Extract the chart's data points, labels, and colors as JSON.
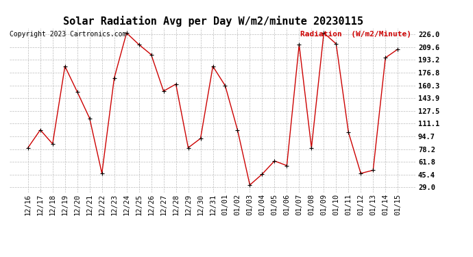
{
  "title": "Solar Radiation Avg per Day W/m2/minute 20230115",
  "copyright": "Copyright 2023 Cartronics.com",
  "legend_label": "Radiation  (W/m2/Minute)",
  "dates": [
    "12/16",
    "12/17",
    "12/18",
    "12/19",
    "12/20",
    "12/21",
    "12/22",
    "12/23",
    "12/24",
    "12/25",
    "12/26",
    "12/27",
    "12/28",
    "12/29",
    "12/30",
    "12/31",
    "01/01",
    "01/02",
    "01/03",
    "01/04",
    "01/05",
    "01/06",
    "01/07",
    "01/08",
    "01/09",
    "01/10",
    "01/11",
    "01/12",
    "01/13",
    "01/14",
    "01/15"
  ],
  "values": [
    80,
    103,
    85,
    185,
    152,
    118,
    47,
    170,
    228,
    213,
    200,
    153,
    162,
    80,
    92,
    185,
    160,
    103,
    32,
    46,
    63,
    57,
    213,
    80,
    228,
    214,
    100,
    47,
    51,
    196,
    207
  ],
  "line_color": "#cc0000",
  "marker_color": "#000000",
  "grid_color": "#bbbbbb",
  "bg_color": "#ffffff",
  "title_fontsize": 11,
  "tick_fontsize": 7.5,
  "copyright_fontsize": 7,
  "legend_fontsize": 8,
  "ylabel_ticks": [
    29.0,
    45.4,
    61.8,
    78.2,
    94.7,
    111.1,
    127.5,
    143.9,
    160.3,
    176.8,
    193.2,
    209.6,
    226.0
  ],
  "ylim": [
    22,
    234
  ]
}
